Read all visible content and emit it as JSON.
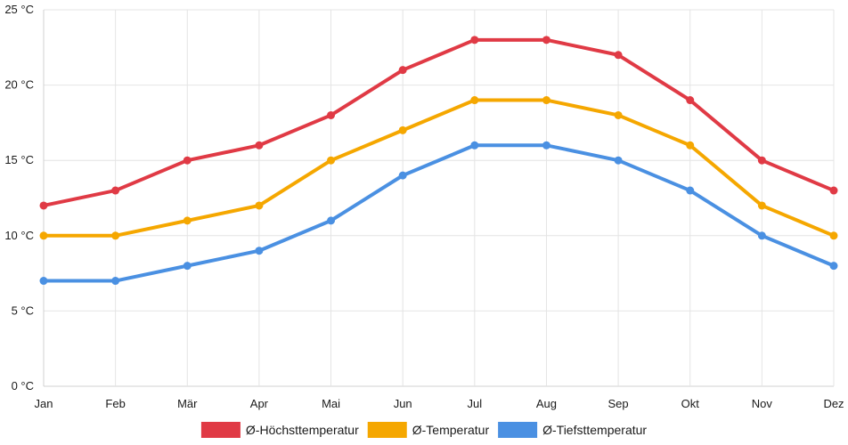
{
  "chart_data": {
    "type": "line",
    "title": "",
    "xlabel": "",
    "ylabel": "",
    "y_unit": "°C",
    "ylim": [
      0,
      25
    ],
    "y_ticks": [
      0,
      5,
      10,
      15,
      20,
      25
    ],
    "grid": true,
    "legend_position": "bottom",
    "categories": [
      "Jan",
      "Feb",
      "Mär",
      "Apr",
      "Mai",
      "Jun",
      "Jul",
      "Aug",
      "Sep",
      "Okt",
      "Nov",
      "Dez"
    ],
    "series": [
      {
        "key": "max",
        "name": "Ø-Höchsttemperatur",
        "color": "#e03a45",
        "values": [
          12,
          13,
          15,
          16,
          18,
          21,
          23,
          23,
          22,
          19,
          15,
          13
        ]
      },
      {
        "key": "avg",
        "name": "Ø-Temperatur",
        "color": "#f5a700",
        "values": [
          10,
          10,
          11,
          12,
          15,
          17,
          19,
          19,
          18,
          16,
          12,
          10
        ]
      },
      {
        "key": "min",
        "name": "Ø-Tiefsttemperatur",
        "color": "#4a90e2",
        "values": [
          7,
          7,
          8,
          9,
          11,
          14,
          16,
          16,
          15,
          13,
          10,
          8
        ]
      }
    ]
  }
}
